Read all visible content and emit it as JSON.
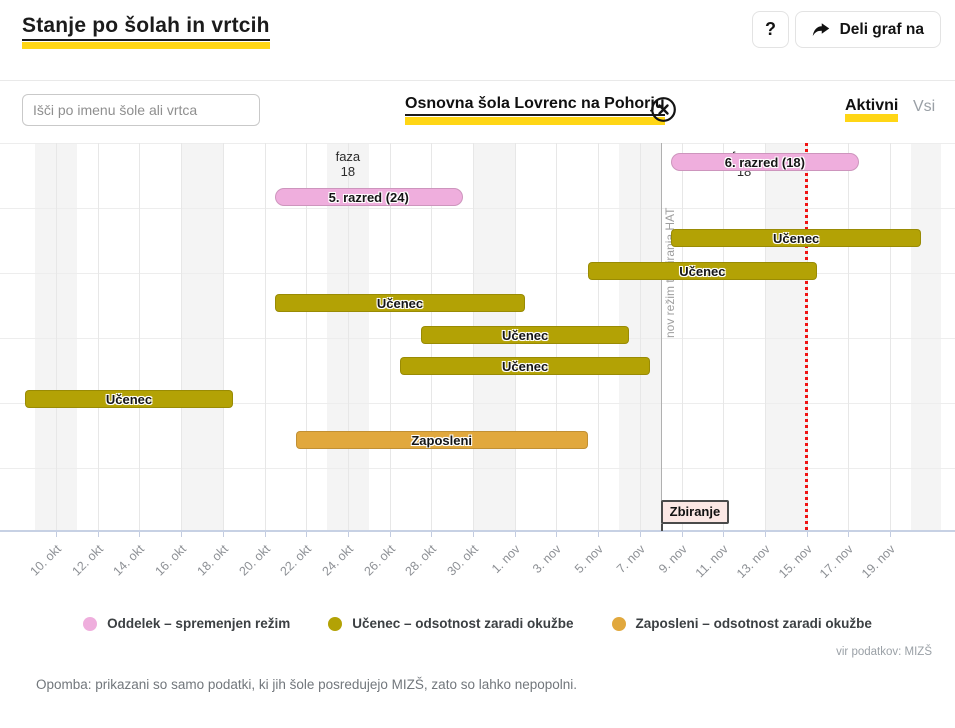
{
  "header": {
    "title": "Stanje po šolah in vrtcih",
    "help_label": "?",
    "share_label": "Deli graf na"
  },
  "controls": {
    "search_placeholder": "Išči po imenu šole ali vrtca",
    "selected_school": "Osnovna šola Lovrenc na Pohorju",
    "tabs": [
      {
        "label": "Aktivni",
        "active": true
      },
      {
        "label": "Vsi",
        "active": false
      }
    ]
  },
  "chart_data": {
    "type": "gantt",
    "x_ticks": [
      "10. okt",
      "12. okt",
      "14. okt",
      "16. okt",
      "18. okt",
      "20. okt",
      "22. okt",
      "24. okt",
      "26. okt",
      "28. okt",
      "30. okt",
      "1. nov",
      "3. nov",
      "5. nov",
      "7. nov",
      "9. nov",
      "11. nov",
      "13. nov",
      "15. nov",
      "17. nov",
      "19. nov"
    ],
    "x_domain": {
      "start": "8. okt",
      "end": "22. nov"
    },
    "weekend_band_start_dates": [
      "9. okt",
      "16. okt",
      "23. okt",
      "30. okt",
      "6. nov",
      "13. nov",
      "20. nov"
    ],
    "series": {
      "oddelek": {
        "color": "#efaedd"
      },
      "ucenec": {
        "color": "#b3a205"
      },
      "zaposleni": {
        "color": "#e1a83d"
      }
    },
    "bars": [
      {
        "row": 0,
        "label": "6. razred (18)",
        "series": "oddelek",
        "start": "9. nov",
        "end": "17. nov"
      },
      {
        "row": 1,
        "label": "5. razred (24)",
        "series": "oddelek",
        "start": "21. okt",
        "end": "29. okt"
      },
      {
        "row": 2,
        "label": "Učenec",
        "series": "ucenec",
        "start": "9. nov",
        "end": "20. nov"
      },
      {
        "row": 3,
        "label": "Učenec",
        "series": "ucenec",
        "start": "5. nov",
        "end": "15. nov"
      },
      {
        "row": 4,
        "label": "Učenec",
        "series": "ucenec",
        "start": "21. okt",
        "end": "1. nov"
      },
      {
        "row": 5,
        "label": "Učenec",
        "series": "ucenec",
        "start": "28. okt",
        "end": "6. nov"
      },
      {
        "row": 6,
        "label": "Učenec",
        "series": "ucenec",
        "start": "27. okt",
        "end": "7. nov"
      },
      {
        "row": 7,
        "label": "Učenec",
        "series": "ucenec",
        "start": "9. okt",
        "end": "18. okt"
      },
      {
        "row": 8,
        "label": "Zaposleni",
        "series": "zaposleni",
        "start": "22. okt",
        "end": "4. nov"
      }
    ],
    "annotations": [
      {
        "lines": [
          "faza",
          "18"
        ],
        "date": "24. okt"
      },
      {
        "lines": [
          "faza",
          "18"
        ],
        "date": "12. nov"
      }
    ],
    "milestone_line": {
      "label": "nov režim testiranja HAT",
      "date": "8. nov"
    },
    "flag": {
      "label": "Zbiranje",
      "date": "8. nov"
    },
    "marker_line": {
      "date": "15. nov"
    }
  },
  "legend": [
    {
      "series": "oddelek",
      "label": "Oddelek – spremenjen režim"
    },
    {
      "series": "ucenec",
      "label": "Učenec – odsotnost zaradi okužbe"
    },
    {
      "series": "zaposleni",
      "label": "Zaposleni – odsotnost zaradi okužbe"
    }
  ],
  "source": "vir podatkov: MIZŠ",
  "note": "Opomba: prikazani so samo podatki, ki jih šole posredujejo MIZŠ, zato so lahko nepopolni.",
  "colors": {
    "accent_yellow": "#ffd615",
    "weekend_band": "#f4f4f4",
    "marker_red": "#f01414",
    "flag_bg": "#fbe7e4"
  }
}
